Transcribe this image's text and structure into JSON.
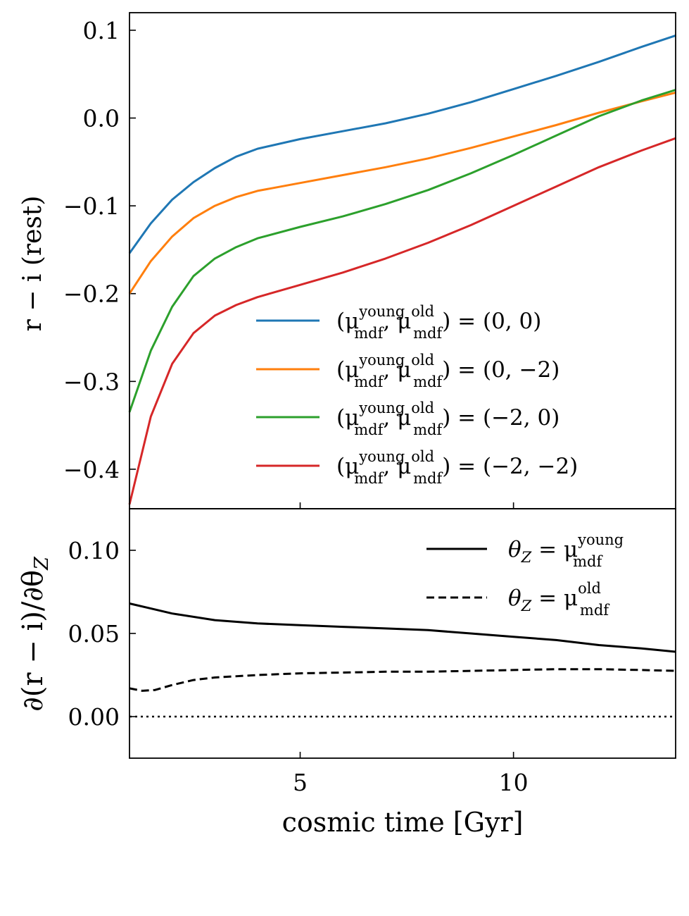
{
  "chart_data": [
    {
      "type": "line",
      "ylabel": "r − i (rest)",
      "xlim": [
        1,
        13.8
      ],
      "ylim": [
        -0.445,
        0.12
      ],
      "yticks": [
        0.1,
        0.0,
        -0.1,
        -0.2,
        -0.3,
        -0.4
      ],
      "ytick_labels": [
        "0.1",
        "0.0",
        "−0.1",
        "−0.2",
        "−0.3",
        "−0.4"
      ],
      "xticks": [
        5,
        10
      ],
      "legend_position": "lower-right",
      "series": [
        {
          "name": "(μ_mdf^young, μ_mdf^old) = (0, 0)",
          "legend": {
            "pre": "(μ",
            "sup1": "young",
            "sub1": "mdf",
            "mid": ", μ",
            "sup2": "old",
            "sub2": "mdf",
            "post": ") = (0, 0)"
          },
          "color": "#1f77b4",
          "x": [
            1.0,
            1.5,
            2.0,
            2.5,
            3.0,
            3.5,
            4.0,
            5.0,
            6.0,
            7.0,
            8.0,
            9.0,
            10.0,
            11.0,
            12.0,
            13.0,
            13.8
          ],
          "y": [
            -0.154,
            -0.12,
            -0.093,
            -0.073,
            -0.057,
            -0.044,
            -0.035,
            -0.024,
            -0.015,
            -0.006,
            0.005,
            0.018,
            0.033,
            0.048,
            0.064,
            0.081,
            0.094
          ]
        },
        {
          "name": "(μ_mdf^young, μ_mdf^old) = (0, −2)",
          "legend": {
            "pre": "(μ",
            "sup1": "young",
            "sub1": "mdf",
            "mid": ", μ",
            "sup2": "old",
            "sub2": "mdf",
            "post": ") = (0, −2)"
          },
          "color": "#ff7f0e",
          "x": [
            1.0,
            1.5,
            2.0,
            2.5,
            3.0,
            3.5,
            4.0,
            5.0,
            6.0,
            7.0,
            8.0,
            9.0,
            10.0,
            11.0,
            12.0,
            13.0,
            13.8
          ],
          "y": [
            -0.2,
            -0.163,
            -0.135,
            -0.114,
            -0.1,
            -0.09,
            -0.083,
            -0.074,
            -0.065,
            -0.056,
            -0.046,
            -0.034,
            -0.021,
            -0.008,
            0.006,
            0.019,
            0.029
          ]
        },
        {
          "name": "(μ_mdf^young, μ_mdf^old) = (−2, 0)",
          "legend": {
            "pre": "(μ",
            "sup1": "young",
            "sub1": "mdf",
            "mid": ", μ",
            "sup2": "old",
            "sub2": "mdf",
            "post": ") = (−2, 0)"
          },
          "color": "#2ca02c",
          "x": [
            1.0,
            1.5,
            2.0,
            2.5,
            3.0,
            3.5,
            4.0,
            5.0,
            6.0,
            7.0,
            8.0,
            9.0,
            10.0,
            11.0,
            12.0,
            13.0,
            13.8
          ],
          "y": [
            -0.335,
            -0.265,
            -0.215,
            -0.18,
            -0.16,
            -0.147,
            -0.137,
            -0.124,
            -0.112,
            -0.098,
            -0.082,
            -0.063,
            -0.042,
            -0.02,
            0.002,
            0.02,
            0.032
          ]
        },
        {
          "name": "(μ_mdf^young, μ_mdf^old) = (−2, −2)",
          "legend": {
            "pre": "(μ",
            "sup1": "young",
            "sub1": "mdf",
            "mid": ", μ",
            "sup2": "old",
            "sub2": "mdf",
            "post": ") = (−2, −2)"
          },
          "color": "#d62728",
          "x": [
            1.0,
            1.5,
            2.0,
            2.5,
            3.0,
            3.5,
            4.0,
            5.0,
            6.0,
            7.0,
            8.0,
            9.0,
            10.0,
            11.0,
            12.0,
            13.0,
            13.8
          ],
          "y": [
            -0.44,
            -0.34,
            -0.28,
            -0.245,
            -0.225,
            -0.213,
            -0.204,
            -0.19,
            -0.176,
            -0.16,
            -0.142,
            -0.122,
            -0.1,
            -0.078,
            -0.056,
            -0.037,
            -0.023
          ]
        }
      ]
    },
    {
      "type": "line",
      "xlabel": "cosmic time [Gyr]",
      "ylabel": "∂(r − i)/∂θ_Z",
      "ylabel_parts": {
        "main": "∂(r − i)/∂θ",
        "sub": "Z"
      },
      "xlim": [
        1,
        13.8
      ],
      "ylim": [
        -0.025,
        0.125
      ],
      "yticks": [
        0.1,
        0.05,
        0.0
      ],
      "ytick_labels": [
        "0.10",
        "0.05",
        "0.00"
      ],
      "xticks": [
        5,
        10
      ],
      "xtick_labels": [
        "5",
        "10"
      ],
      "legend_position": "top-right",
      "reference_line": {
        "y": 0.0,
        "style": "dotted"
      },
      "series": [
        {
          "name": "θ_Z = μ_mdf^young",
          "legend": {
            "pre": "θ",
            "sub0": "Z",
            "mid": " = μ",
            "sup": "young",
            "sub": "mdf"
          },
          "style": "solid",
          "color": "#000000",
          "x": [
            1.0,
            1.5,
            2.0,
            3.0,
            4.0,
            5.0,
            6.0,
            7.0,
            8.0,
            9.0,
            10.0,
            11.0,
            12.0,
            13.0,
            13.8
          ],
          "y": [
            0.068,
            0.065,
            0.062,
            0.058,
            0.056,
            0.055,
            0.054,
            0.053,
            0.052,
            0.05,
            0.048,
            0.046,
            0.043,
            0.041,
            0.039
          ]
        },
        {
          "name": "θ_Z = μ_mdf^old",
          "legend": {
            "pre": "θ",
            "sub0": "Z",
            "mid": " = μ",
            "sup": "old",
            "sub": "mdf"
          },
          "style": "dashed",
          "color": "#000000",
          "x": [
            1.0,
            1.3,
            1.6,
            2.0,
            2.5,
            3.0,
            4.0,
            5.0,
            6.0,
            7.0,
            8.0,
            9.0,
            10.0,
            11.0,
            12.0,
            13.0,
            13.8
          ],
          "y": [
            0.017,
            0.0155,
            0.016,
            0.019,
            0.022,
            0.0235,
            0.025,
            0.026,
            0.0265,
            0.027,
            0.027,
            0.0275,
            0.028,
            0.0285,
            0.0285,
            0.028,
            0.0275
          ]
        }
      ]
    }
  ]
}
